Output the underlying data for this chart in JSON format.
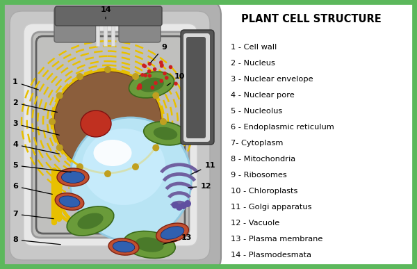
{
  "title": "PLANT CELL STRUCTURE",
  "background_color": "#ffffff",
  "border_color": "#5cb85c",
  "legend": [
    "1 - Cell wall",
    "2 - Nucleus",
    "3 - Nuclear envelope",
    "4 - Nuclear pore",
    "5 - Nucleolus",
    "6 - Endoplasmic reticulum",
    "7- Cytoplasm",
    "8 - Mitochondria",
    "9 - Ribosomes",
    "10 - Chloroplasts",
    "11 - Golgi apparatus",
    "12 - Vacuole",
    "13 - Plasma membrane",
    "14 - Plasmodesmata"
  ],
  "cell_wall_outer_color": "#a0a0a0",
  "cell_wall_mid_color": "#c8c8c8",
  "cell_wall_inner_color": "#e0e0e0",
  "plasma_mem_color": "#888888",
  "cytoplasm_color": "#b8b8b6",
  "nucleus_color": "#8B5E3C",
  "nucleus_dark_color": "#6B3E1C",
  "nucleolus_color": "#c03020",
  "vacuole_color_outer": "#7ec8e3",
  "vacuole_color_inner": "#b8e4f4",
  "vacuole_shine": "#ffffff",
  "chloroplast_outer": "#6a9b3a",
  "chloroplast_inner": "#4a7a2a",
  "mitochondria_outer": "#c05030",
  "mitochondria_inner": "#3060b0",
  "golgi_color": "#7060a0",
  "ribosome_color": "#d04040",
  "er_color": "#e8c000",
  "plasmodesmata_color": "#d8d8d8",
  "dark_wall_color": "#555555"
}
